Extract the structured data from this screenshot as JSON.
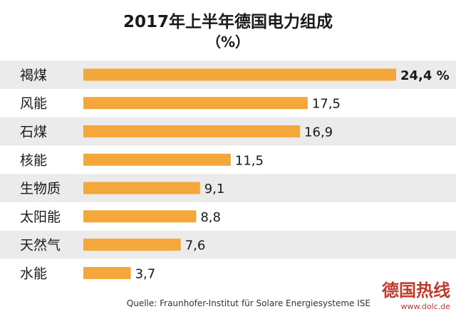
{
  "chart_data": {
    "type": "bar",
    "orientation": "horizontal",
    "title": "2017年上半年德国电力组成",
    "subtitle": "（%）",
    "categories": [
      "褐煤",
      "风能",
      "石煤",
      "核能",
      "生物质",
      "太阳能",
      "天然气",
      "水能"
    ],
    "values": [
      24.4,
      17.5,
      16.9,
      11.5,
      9.1,
      8.8,
      7.6,
      3.7
    ],
    "value_labels": [
      "24,4 %",
      "17,5",
      "16,9",
      "11,5",
      "9,1",
      "8,8",
      "7,6",
      "3,7"
    ],
    "xlim": [
      0,
      24.4
    ],
    "grid": false,
    "bar_color": "#f4a73a",
    "alternate_row_color": "#ebebeb",
    "source": "Quelle: Fraunhofer-Institut für Solare Energiesysteme ISE"
  },
  "watermark": {
    "title": "德国热线",
    "url": "www.dolc.de",
    "color": "#c0392b"
  }
}
